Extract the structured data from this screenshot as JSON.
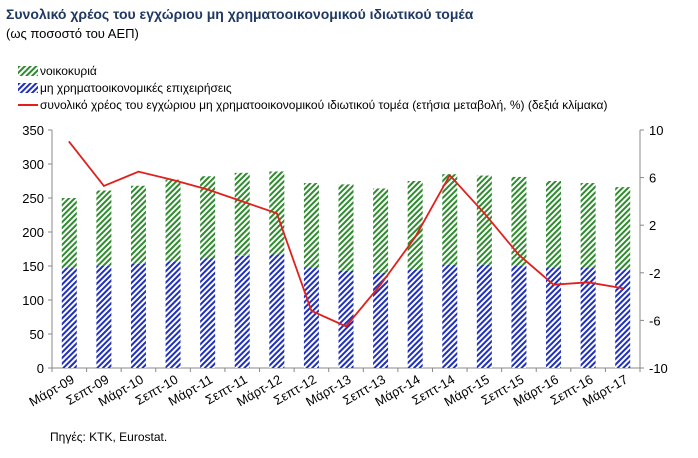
{
  "title": "Συνολικό χρέος του εγχώριου μη χρηματοοικονομικού ιδιωτικού τομέα",
  "subtitle": "(ως ποσοστό του ΑΕΠ)",
  "source": "Πηγές: ΚΤΚ, Eurostat.",
  "colors": {
    "households": "#2e8b2e",
    "nfc": "#1f2fbf",
    "line": "#e0201c"
  },
  "chart_data": {
    "type": "bar",
    "stacked": true,
    "categories": [
      "Μάρτ-09",
      "Σεπτ-09",
      "Μάρτ-10",
      "Σεπτ-10",
      "Μάρτ-11",
      "Σεπτ-11",
      "Μάρτ-12",
      "Σεπτ-12",
      "Μάρτ-13",
      "Σεπτ-13",
      "Μάρτ-14",
      "Σεπτ-14",
      "Μάρτ-15",
      "Σεπτ-15",
      "Μάρτ-16",
      "Σεπτ-16",
      "Μάρτ-17"
    ],
    "series": [
      {
        "name": "μη χρηματοοικονομικές επιχειρήσεις",
        "type": "bar",
        "pattern": "diagonal-blue",
        "values": [
          147,
          150,
          153,
          157,
          161,
          165,
          167,
          148,
          143,
          140,
          145,
          152,
          152,
          150,
          148,
          148,
          145
        ]
      },
      {
        "name": "νοικοκυριά",
        "type": "bar",
        "pattern": "diagonal-green",
        "values": [
          103,
          111,
          115,
          120,
          121,
          122,
          122,
          124,
          127,
          124,
          130,
          133,
          131,
          131,
          127,
          124,
          121
        ]
      },
      {
        "name": "συνολικό χρέος του εγχώριου μη χρηματοοικονομικού ιδιωτικού τομέα (ετήσια μεταβολή, %) (δεξιά κλίμακα)",
        "type": "line",
        "axis": "right",
        "values": [
          9.0,
          5.3,
          6.5,
          5.8,
          5.0,
          4.0,
          3.0,
          -5.2,
          -6.5,
          -3.0,
          1.0,
          6.2,
          3.0,
          -0.5,
          -3.0,
          -2.8,
          -3.3
        ]
      }
    ],
    "y_left": {
      "min": 0,
      "max": 350,
      "ticks": [
        0,
        50,
        100,
        150,
        200,
        250,
        300,
        350
      ]
    },
    "y_right": {
      "min": -10,
      "max": 10,
      "ticks": [
        -10,
        -6,
        -2,
        2,
        6,
        10
      ]
    },
    "grid": false,
    "legend_position": "top-left"
  }
}
